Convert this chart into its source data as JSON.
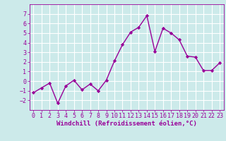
{
  "x": [
    0,
    1,
    2,
    3,
    4,
    5,
    6,
    7,
    8,
    9,
    10,
    11,
    12,
    13,
    14,
    15,
    16,
    17,
    18,
    19,
    20,
    21,
    22,
    23
  ],
  "y": [
    -1.2,
    -0.7,
    -0.2,
    -2.3,
    -0.5,
    0.1,
    -0.9,
    -0.3,
    -1.0,
    0.1,
    2.1,
    3.8,
    5.1,
    5.6,
    6.8,
    3.1,
    5.5,
    5.0,
    4.3,
    2.6,
    2.5,
    1.1,
    1.1,
    1.9
  ],
  "line_color": "#990099",
  "marker": "D",
  "marker_size": 2.2,
  "line_width": 1.0,
  "xlabel": "Windchill (Refroidissement éolien,°C)",
  "xlabel_fontsize": 6.5,
  "xlabel_color": "#990099",
  "bg_color": "#cceaea",
  "grid_color": "#ffffff",
  "tick_label_color": "#990099",
  "ylim": [
    -3,
    8
  ],
  "yticks": [
    -2,
    -1,
    0,
    1,
    2,
    3,
    4,
    5,
    6,
    7
  ],
  "xlim": [
    -0.5,
    23.5
  ],
  "xticks": [
    0,
    1,
    2,
    3,
    4,
    5,
    6,
    7,
    8,
    9,
    10,
    11,
    12,
    13,
    14,
    15,
    16,
    17,
    18,
    19,
    20,
    21,
    22,
    23
  ],
  "tick_fontsize": 6.0,
  "spine_color": "#990099"
}
